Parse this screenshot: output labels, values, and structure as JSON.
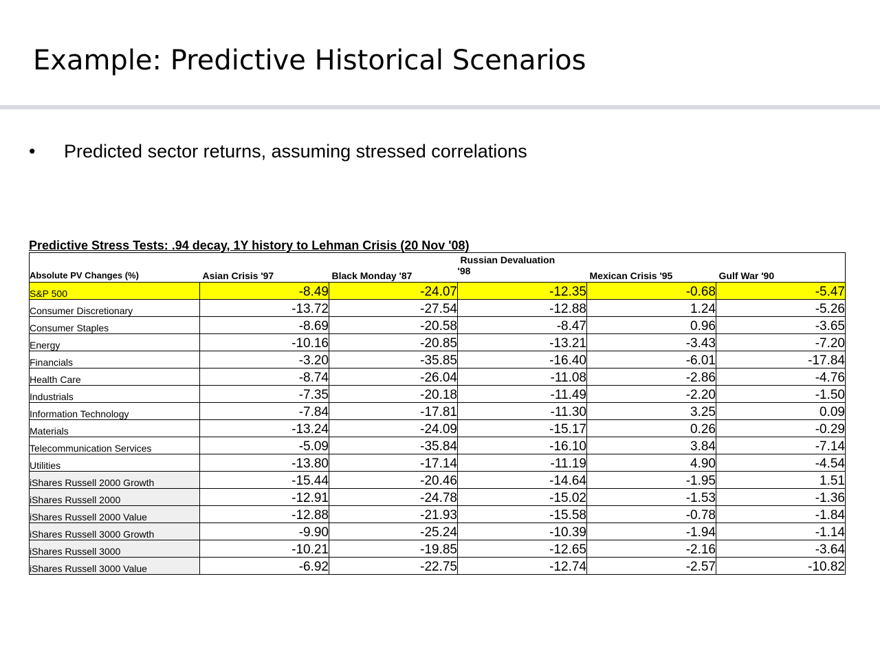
{
  "slide": {
    "title": "Example: Predictive Historical Scenarios",
    "bullet": "Predicted sector returns, assuming stressed correlations"
  },
  "table": {
    "title": "Predictive Stress Tests: .94 decay,  1Y history  to Lehman Crisis (20 Nov '08)",
    "headers": {
      "label": "Absolute PV Changes (%)",
      "c1": "Asian Crisis '97",
      "c2": "Black Monday '87",
      "c3_line1": "Russian Devaluation",
      "c3_line2": "'98",
      "c4": "Mexican Crisis '95",
      "c5": "Gulf War '90"
    },
    "rows": [
      {
        "label": "S&P 500",
        "v": [
          "-8.49",
          "-24.07",
          "-12.35",
          "-0.68",
          "-5.47"
        ]
      },
      {
        "label": "Consumer Discretionary",
        "v": [
          "-13.72",
          "-27.54",
          "-12.88",
          "1.24",
          "-5.26"
        ]
      },
      {
        "label": "Consumer Staples",
        "v": [
          "-8.69",
          "-20.58",
          "-8.47",
          "0.96",
          "-3.65"
        ]
      },
      {
        "label": "Energy",
        "v": [
          "-10.16",
          "-20.85",
          "-13.21",
          "-3.43",
          "-7.20"
        ]
      },
      {
        "label": "Financials",
        "v": [
          "-3.20",
          "-35.85",
          "-16.40",
          "-6.01",
          "-17.84"
        ]
      },
      {
        "label": "Health Care",
        "v": [
          "-8.74",
          "-26.04",
          "-11.08",
          "-2.86",
          "-4.76"
        ]
      },
      {
        "label": "Industrials",
        "v": [
          "-7.35",
          "-20.18",
          "-11.49",
          "-2.20",
          "-1.50"
        ]
      },
      {
        "label": "Information Technology",
        "v": [
          "-7.84",
          "-17.81",
          "-11.30",
          "3.25",
          "0.09"
        ]
      },
      {
        "label": "Materials",
        "v": [
          "-13.24",
          "-24.09",
          "-15.17",
          "0.26",
          "-0.29"
        ]
      },
      {
        "label": "Telecommunication Services",
        "v": [
          "-5.09",
          "-35.84",
          "-16.10",
          "3.84",
          "-7.14"
        ]
      },
      {
        "label": "Utilities",
        "v": [
          "-13.80",
          "-17.14",
          "-11.19",
          "4.90",
          "-4.54"
        ]
      },
      {
        "label": "iShares Russell 2000 Growth",
        "v": [
          "-15.44",
          "-20.46",
          "-14.64",
          "-1.95",
          "1.51"
        ]
      },
      {
        "label": "iShares Russell 2000",
        "v": [
          "-12.91",
          "-24.78",
          "-15.02",
          "-1.53",
          "-1.36"
        ]
      },
      {
        "label": "iShares Russell 2000 Value",
        "v": [
          "-12.88",
          "-21.93",
          "-15.58",
          "-0.78",
          "-1.84"
        ]
      },
      {
        "label": "iShares Russell 3000 Growth",
        "v": [
          "-9.90",
          "-25.24",
          "-10.39",
          "-1.94",
          "-1.14"
        ]
      },
      {
        "label": "iShares Russell 3000",
        "v": [
          "-10.21",
          "-19.85",
          "-12.65",
          "-2.16",
          "-3.64"
        ]
      },
      {
        "label": "iShares Russell 3000 Value",
        "v": [
          "-6.92",
          "-22.75",
          "-12.74",
          "-2.57",
          "-10.82"
        ]
      }
    ]
  },
  "colors": {
    "highlight": "#ffff00",
    "rule": "#d9d9e4",
    "shade": "#efefef"
  }
}
